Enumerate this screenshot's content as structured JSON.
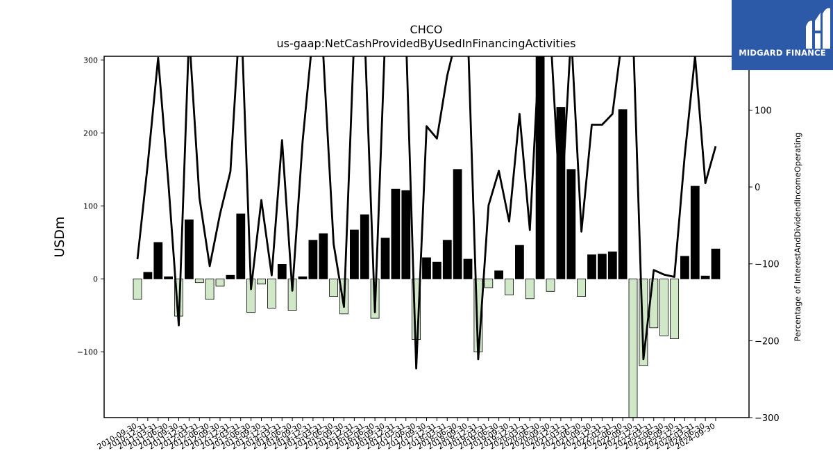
{
  "logo": {
    "text": "MIDGARD FINANCE"
  },
  "chart_data": {
    "type": "bar",
    "title": "CHCO",
    "subtitle": "us-gaap:NetCashProvidedByUsedInFinancingActivities",
    "ylabel": "USDm",
    "y2label": "Percentage of InterestAndDividendIncomeOperating",
    "ylim": [
      -190,
      305
    ],
    "y2lim": [
      -300,
      170
    ],
    "yticks": [
      -100,
      0,
      100,
      200,
      300
    ],
    "y2ticks": [
      -300,
      -200,
      -100,
      0,
      100
    ],
    "grid": false,
    "colors": {
      "positive": "#000000",
      "negative": "#d0e8c8",
      "line": "#000000"
    },
    "categories": [
      "2010-09-30",
      "2010-12-31",
      "2011-03-31",
      "2011-06-30",
      "2011-09-30",
      "2011-12-31",
      "2012-03-31",
      "2012-06-30",
      "2012-09-30",
      "2012-12-31",
      "2013-03-31",
      "2013-06-30",
      "2013-09-30",
      "2013-12-31",
      "2014-03-31",
      "2014-06-30",
      "2014-09-30",
      "2014-12-31",
      "2015-03-31",
      "2015-06-30",
      "2015-09-30",
      "2015-12-31",
      "2016-03-31",
      "2016-06-30",
      "2016-09-30",
      "2016-12-31",
      "2017-03-31",
      "2017-06-30",
      "2017-09-30",
      "2017-12-31",
      "2018-03-31",
      "2018-06-30",
      "2018-09-30",
      "2018-12-31",
      "2019-03-31",
      "2019-06-30",
      "2019-09-30",
      "2019-12-31",
      "2020-03-31",
      "2020-06-30",
      "2020-09-30",
      "2020-12-31",
      "2021-03-31",
      "2021-06-30",
      "2021-09-30",
      "2021-12-31",
      "2022-03-31",
      "2022-06-30",
      "2022-09-30",
      "2022-12-31",
      "2023-03-31",
      "2023-06-30",
      "2023-09-30",
      "2023-12-31",
      "2024-03-31",
      "2024-06-30",
      "2024-09-30"
    ],
    "series": [
      {
        "type": "bar",
        "values": [
          -28,
          9,
          50,
          3,
          -51,
          81,
          -5,
          -28,
          -10,
          5,
          89,
          -46,
          -7,
          -40,
          20,
          -43,
          3,
          53,
          62,
          -24,
          -48,
          67,
          88,
          -54,
          56,
          123,
          121,
          -83,
          29,
          23,
          53,
          150,
          27,
          -100,
          -12,
          11,
          -22,
          46,
          -27,
          310,
          -17,
          235,
          150,
          -24,
          33,
          34,
          37,
          232,
          -210,
          -119,
          -67,
          -78,
          -82,
          31,
          127,
          4,
          41
        ]
      },
      {
        "type": "line",
        "axis": "right",
        "values": [
          -94,
          30,
          168,
          5,
          -180,
          200,
          -14,
          -103,
          -35,
          20,
          240,
          -133,
          -17,
          -115,
          61,
          -135,
          60,
          200,
          170,
          -74,
          -156,
          200,
          200,
          -163,
          200,
          200,
          200,
          -236,
          79,
          63,
          145,
          200,
          200,
          -224,
          -24,
          21,
          -45,
          95,
          -56,
          200,
          200,
          -38,
          200,
          -58,
          81,
          81,
          95,
          200,
          200,
          -224,
          -108,
          -114,
          -117,
          41,
          170,
          5,
          53
        ]
      }
    ]
  }
}
